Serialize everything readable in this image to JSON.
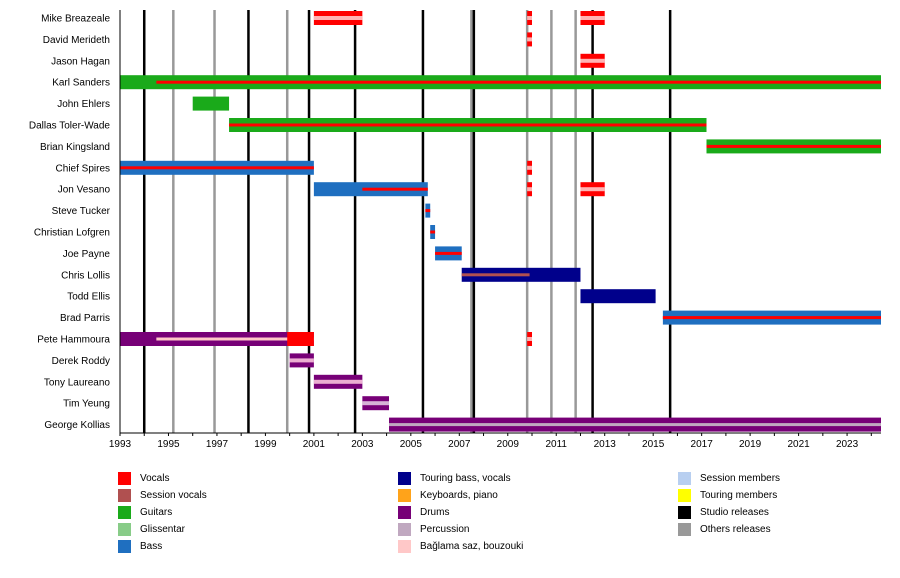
{
  "chart_data": {
    "type": "timeline",
    "title": "",
    "xlabel": "",
    "ylabel": "",
    "xlim": [
      1993,
      2024.4
    ],
    "x_ticks": [
      1993,
      1995,
      1997,
      1999,
      2001,
      2003,
      2005,
      2007,
      2009,
      2011,
      2013,
      2015,
      2017,
      2019,
      2021,
      2023
    ],
    "members": [
      "Mike Breazeale",
      "David Merideth",
      "Jason Hagan",
      "Karl Sanders",
      "John Ehlers",
      "Dallas Toler-Wade",
      "Brian Kingsland",
      "Chief Spires",
      "Jon Vesano",
      "Steve Tucker",
      "Christian Lofgren",
      "Joe Payne",
      "Chris Lollis",
      "Todd Ellis",
      "Brad Parris",
      "Pete Hammoura",
      "Derek Roddy",
      "Tony Laureano",
      "Tim Yeung",
      "George Kollias"
    ],
    "studio_releases": [
      1994.0,
      1998.3,
      2000.8,
      2002.7,
      2005.5,
      2007.6,
      2012.5,
      2015.7
    ],
    "other_releases": [
      1994.0,
      1995.2,
      1996.9,
      1999.9,
      2007.5,
      2009.8,
      2010.8,
      2011.8
    ],
    "legend": [
      {
        "key": "vocals",
        "label": "Vocals",
        "color": "#ff0000"
      },
      {
        "key": "session_vocals",
        "label": "Session vocals",
        "color": "#b05050"
      },
      {
        "key": "guitars",
        "label": "Guitars",
        "color": "#1aaa1a"
      },
      {
        "key": "glissentar",
        "label": "Glissentar",
        "color": "#88cc88"
      },
      {
        "key": "bass",
        "label": "Bass",
        "color": "#1f6fc0"
      },
      {
        "key": "touring_bass_vocals",
        "label": "Touring bass, vocals",
        "color": "#00008b"
      },
      {
        "key": "keyboards_piano",
        "label": "Keyboards, piano",
        "color": "#ffa31a"
      },
      {
        "key": "drums",
        "label": "Drums",
        "color": "#770077"
      },
      {
        "key": "percussion",
        "label": "Percussion",
        "color": "#c0a8c0"
      },
      {
        "key": "baglama",
        "label": "Bağlama saz, bouzouki",
        "color": "#ffc8c8"
      },
      {
        "key": "session_members",
        "label": "Session members",
        "color": "#b8cff0"
      },
      {
        "key": "touring_members",
        "label": "Touring members",
        "color": "#ffff00"
      },
      {
        "key": "studio_releases",
        "label": "Studio releases",
        "color": "#000000"
      },
      {
        "key": "other_releases",
        "label": "Others releases",
        "color": "#999999"
      }
    ],
    "bars": [
      {
        "member": "Mike Breazeale",
        "start": 2001.0,
        "end": 2003.0,
        "role": "vocals",
        "overlay": "touring"
      },
      {
        "member": "Mike Breazeale",
        "start": 2009.8,
        "end": 2010.0,
        "role": "vocals",
        "overlay": "touring"
      },
      {
        "member": "Mike Breazeale",
        "start": 2012.0,
        "end": 2013.0,
        "role": "vocals",
        "overlay": "touring"
      },
      {
        "member": "David Merideth",
        "start": 2009.8,
        "end": 2010.0,
        "role": "vocals",
        "overlay": "touring"
      },
      {
        "member": "Jason Hagan",
        "start": 2012.0,
        "end": 2013.0,
        "role": "vocals",
        "overlay": "touring"
      },
      {
        "member": "Karl Sanders",
        "start": 1993.0,
        "end": 2024.4,
        "role": "guitars",
        "stripe": "vocals",
        "stripe_start": 1994.5,
        "stripe_end": 2024.4
      },
      {
        "member": "John Ehlers",
        "start": 1996.0,
        "end": 1997.5,
        "role": "guitars"
      },
      {
        "member": "Dallas Toler-Wade",
        "start": 1997.5,
        "end": 2017.2,
        "role": "guitars",
        "stripe": "vocals",
        "stripe_start": 1997.5,
        "stripe_end": 2017.2
      },
      {
        "member": "Brian Kingsland",
        "start": 2017.2,
        "end": 2024.4,
        "role": "guitars",
        "stripe": "vocals",
        "stripe_start": 2017.2,
        "stripe_end": 2024.4
      },
      {
        "member": "Chief Spires",
        "start": 1993.0,
        "end": 2001.0,
        "role": "bass",
        "stripe": "vocals",
        "stripe_start": 1993.0,
        "stripe_end": 2001.0
      },
      {
        "member": "Chief Spires",
        "start": 2009.8,
        "end": 2010.0,
        "role": "vocals",
        "overlay": "touring"
      },
      {
        "member": "Jon Vesano",
        "start": 2001.0,
        "end": 2005.7,
        "role": "bass",
        "stripe": "vocals",
        "stripe_start": 2003.0,
        "stripe_end": 2005.7
      },
      {
        "member": "Jon Vesano",
        "start": 2009.8,
        "end": 2010.0,
        "role": "vocals",
        "overlay": "touring"
      },
      {
        "member": "Jon Vesano",
        "start": 2012.0,
        "end": 2013.0,
        "role": "vocals",
        "overlay": "touring"
      },
      {
        "member": "Steve Tucker",
        "start": 2005.6,
        "end": 2005.8,
        "role": "bass",
        "stripe": "vocals",
        "stripe_start": 2005.6,
        "stripe_end": 2005.8
      },
      {
        "member": "Christian Lofgren",
        "start": 2005.8,
        "end": 2006.0,
        "role": "bass",
        "stripe": "vocals",
        "stripe_start": 2005.8,
        "stripe_end": 2006.0
      },
      {
        "member": "Joe Payne",
        "start": 2006.0,
        "end": 2007.1,
        "role": "bass",
        "stripe": "vocals",
        "stripe_start": 2006.0,
        "stripe_end": 2007.1
      },
      {
        "member": "Chris Lollis",
        "start": 2007.1,
        "end": 2012.0,
        "role": "touring_bass_vocals",
        "stripe": "session_vocals",
        "stripe_start": 2007.1,
        "stripe_end": 2009.9
      },
      {
        "member": "Todd Ellis",
        "start": 2012.0,
        "end": 2015.1,
        "role": "touring_bass_vocals"
      },
      {
        "member": "Brad Parris",
        "start": 2015.4,
        "end": 2024.4,
        "role": "bass",
        "stripe": "vocals",
        "stripe_start": 2015.4,
        "stripe_end": 2024.4
      },
      {
        "member": "Pete Hammoura",
        "start": 1993.0,
        "end": 2001.0,
        "role": "drums",
        "stripe": "baglama",
        "stripe_start": 1994.5,
        "stripe_end": 2001.0
      },
      {
        "member": "Pete Hammoura",
        "start": 1999.9,
        "end": 2001.0,
        "role": "vocals"
      },
      {
        "member": "Pete Hammoura",
        "start": 2009.8,
        "end": 2010.0,
        "role": "vocals",
        "overlay": "touring"
      },
      {
        "member": "Derek Roddy",
        "start": 2000.0,
        "end": 2001.0,
        "role": "drums",
        "overlay": "session"
      },
      {
        "member": "Tony Laureano",
        "start": 2001.0,
        "end": 2003.0,
        "role": "drums",
        "overlay": "session"
      },
      {
        "member": "Tim Yeung",
        "start": 2003.0,
        "end": 2004.1,
        "role": "drums",
        "overlay": "touring"
      },
      {
        "member": "George Kollias",
        "start": 2004.1,
        "end": 2024.4,
        "role": "drums",
        "stripe": "percussion",
        "stripe_start": 2004.1,
        "stripe_end": 2024.4
      }
    ]
  }
}
